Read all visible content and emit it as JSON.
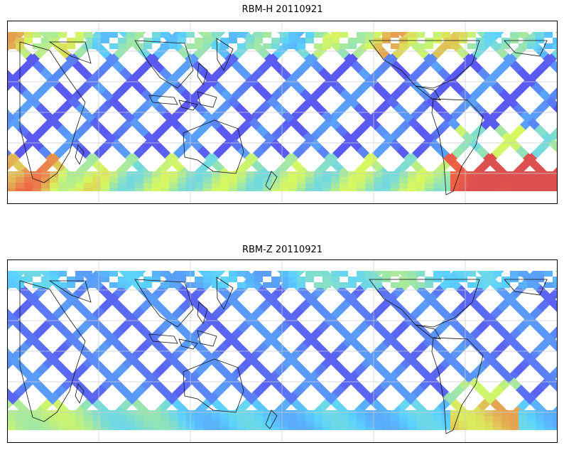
{
  "panels": [
    {
      "title": "RBM-H 20110921"
    },
    {
      "title": "RBM-Z 20110921"
    }
  ],
  "colors": {
    "background": "#ffffff",
    "frame": "#000000",
    "gridline": "#cccccc",
    "coastline": "#111111",
    "colormap_low": "#5a5af0",
    "colormap_mid": "#5ad2ff",
    "colormap_midhigh": "#d8f860",
    "colormap_high": "#f06046",
    "colormap_max": "#dc5050"
  },
  "map": {
    "projection": "equirectangular",
    "gridlines": true,
    "coastlines": true,
    "colormap": "jet"
  }
}
